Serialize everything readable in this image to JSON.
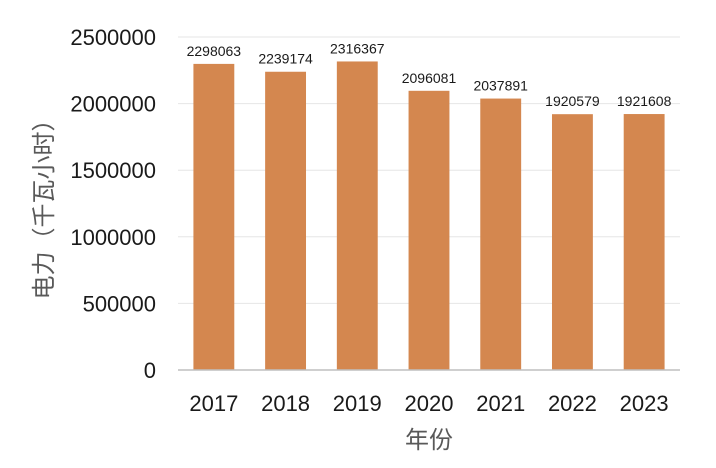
{
  "chart_data": {
    "type": "bar",
    "categories": [
      "2017",
      "2018",
      "2019",
      "2020",
      "2021",
      "2022",
      "2023"
    ],
    "values": [
      2298063,
      2239174,
      2316367,
      2096081,
      2037891,
      1920579,
      1921608
    ],
    "data_labels": [
      "2298063",
      "2239174",
      "2316367",
      "2096081",
      "2037891",
      "1920579",
      "1921608"
    ],
    "xlabel": "年份",
    "ylabel": "电力（千瓦小时）",
    "ylim": [
      0,
      2500000
    ],
    "yticks": [
      0,
      500000,
      1000000,
      1500000,
      2000000,
      2500000
    ],
    "ytick_labels": [
      "0",
      "500000",
      "1000000",
      "1500000",
      "2000000",
      "2500000"
    ],
    "grid": true,
    "bar_color": "#d4874f"
  }
}
